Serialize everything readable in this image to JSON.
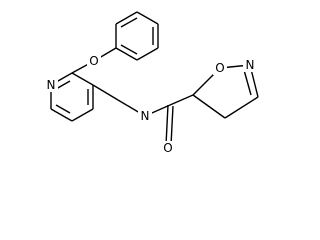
{
  "atoms": [
    {
      "label": "N"
    },
    {
      "label": "O"
    },
    {
      "label": "N"
    },
    {
      "label": "O"
    },
    {
      "label": "O"
    },
    {
      "label": "N"
    }
  ]
}
